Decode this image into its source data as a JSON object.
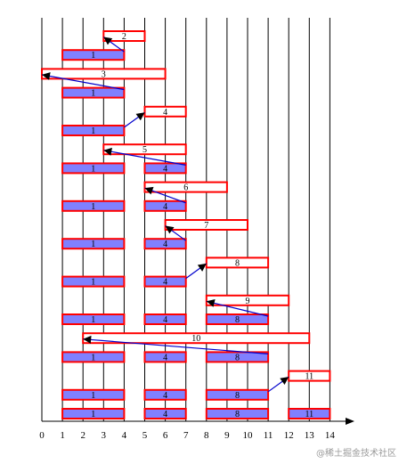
{
  "colors": {
    "grid": "#000000",
    "white_box_stroke": "#ff0000",
    "white_box_fill": "#ffffff",
    "blue_box_fill": "#8080ff",
    "blue_box_stroke": "#ff0000",
    "arrow": "#0000cc",
    "arrowhead": "#000000"
  },
  "axis": {
    "ticks": [
      "0",
      "1",
      "2",
      "3",
      "4",
      "5",
      "6",
      "7",
      "8",
      "9",
      "10",
      "11",
      "12",
      "13",
      "14"
    ]
  },
  "rows": [
    {
      "white": {
        "label": "2",
        "start": 3,
        "end": 5
      },
      "blue": []
    },
    {
      "white": null,
      "blue": [
        {
          "label": "1",
          "start": 1,
          "end": 4
        }
      ]
    },
    {
      "white": {
        "label": "3",
        "start": 0,
        "end": 6
      },
      "blue": []
    },
    {
      "white": null,
      "blue": [
        {
          "label": "1",
          "start": 1,
          "end": 4
        }
      ]
    },
    {
      "white": {
        "label": "4",
        "start": 5,
        "end": 7
      },
      "blue": []
    },
    {
      "white": null,
      "blue": [
        {
          "label": "1",
          "start": 1,
          "end": 4
        }
      ]
    },
    {
      "white": {
        "label": "5",
        "start": 3,
        "end": 7
      },
      "blue": []
    },
    {
      "white": null,
      "blue": [
        {
          "label": "1",
          "start": 1,
          "end": 4
        },
        {
          "label": "4",
          "start": 5,
          "end": 7
        }
      ]
    },
    {
      "white": {
        "label": "6",
        "start": 5,
        "end": 9
      },
      "blue": []
    },
    {
      "white": null,
      "blue": [
        {
          "label": "1",
          "start": 1,
          "end": 4
        },
        {
          "label": "4",
          "start": 5,
          "end": 7
        }
      ]
    },
    {
      "white": {
        "label": "7",
        "start": 6,
        "end": 10
      },
      "blue": []
    },
    {
      "white": null,
      "blue": [
        {
          "label": "1",
          "start": 1,
          "end": 4
        },
        {
          "label": "4",
          "start": 5,
          "end": 7
        }
      ]
    },
    {
      "white": {
        "label": "8",
        "start": 8,
        "end": 11
      },
      "blue": []
    },
    {
      "white": null,
      "blue": [
        {
          "label": "1",
          "start": 1,
          "end": 4
        },
        {
          "label": "4",
          "start": 5,
          "end": 7
        }
      ]
    },
    {
      "white": {
        "label": "9",
        "start": 8,
        "end": 12
      },
      "blue": []
    },
    {
      "white": null,
      "blue": [
        {
          "label": "1",
          "start": 1,
          "end": 4
        },
        {
          "label": "4",
          "start": 5,
          "end": 7
        },
        {
          "label": "8",
          "start": 8,
          "end": 11
        }
      ]
    },
    {
      "white": {
        "label": "10",
        "start": 2,
        "end": 13
      },
      "blue": []
    },
    {
      "white": null,
      "blue": [
        {
          "label": "1",
          "start": 1,
          "end": 4
        },
        {
          "label": "4",
          "start": 5,
          "end": 7
        },
        {
          "label": "8",
          "start": 8,
          "end": 11
        }
      ]
    },
    {
      "white": {
        "label": "11",
        "start": 12,
        "end": 14
      },
      "blue": []
    },
    {
      "white": null,
      "blue": [
        {
          "label": "1",
          "start": 1,
          "end": 4
        },
        {
          "label": "4",
          "start": 5,
          "end": 7
        },
        {
          "label": "8",
          "start": 8,
          "end": 11
        }
      ]
    },
    {
      "white": null,
      "blue": [
        {
          "label": "1",
          "start": 1,
          "end": 4
        },
        {
          "label": "4",
          "start": 5,
          "end": 7
        },
        {
          "label": "8",
          "start": 8,
          "end": 11
        },
        {
          "label": "11",
          "start": 12,
          "end": 14
        }
      ]
    }
  ],
  "arrows": [
    {
      "from": [
        4,
        1
      ],
      "to": [
        3,
        0
      ]
    },
    {
      "from": [
        4,
        3
      ],
      "to": [
        0,
        2
      ]
    },
    {
      "from": [
        4,
        5
      ],
      "to": [
        5,
        4
      ]
    },
    {
      "from": [
        7,
        7
      ],
      "to": [
        3,
        6
      ]
    },
    {
      "from": [
        7,
        9
      ],
      "to": [
        5,
        8
      ]
    },
    {
      "from": [
        7,
        11
      ],
      "to": [
        6,
        10
      ]
    },
    {
      "from": [
        7,
        13
      ],
      "to": [
        8,
        12
      ]
    },
    {
      "from": [
        11,
        15
      ],
      "to": [
        8,
        14
      ]
    },
    {
      "from": [
        11,
        17
      ],
      "to": [
        2,
        16
      ]
    },
    {
      "from": [
        11,
        19
      ],
      "to": [
        12,
        18
      ]
    }
  ],
  "watermark": "@稀土掘金技术社区"
}
